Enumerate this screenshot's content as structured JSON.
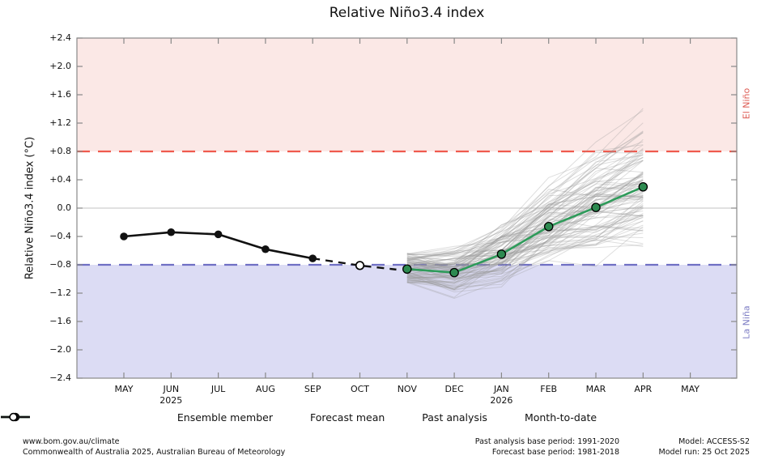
{
  "title": "Relative Niño3.4 index",
  "y_axis": {
    "label": "Relative Niño3.4 index (°C)",
    "tick_labels": [
      "+2.4",
      "+2.0",
      "+1.6",
      "+1.2",
      "+0.8",
      "+0.4",
      "0.0",
      "−0.4",
      "−0.8",
      "−1.2",
      "−1.6",
      "−2.0",
      "−2.4"
    ],
    "tick_values": [
      2.4,
      2.0,
      1.6,
      1.2,
      0.8,
      0.4,
      0.0,
      -0.4,
      -0.8,
      -1.2,
      -1.6,
      -2.0,
      -2.4
    ]
  },
  "x_axis": {
    "months": [
      {
        "label": "MAY",
        "year": ""
      },
      {
        "label": "JUN",
        "year": "2025"
      },
      {
        "label": "JUL",
        "year": ""
      },
      {
        "label": "AUG",
        "year": ""
      },
      {
        "label": "SEP",
        "year": ""
      },
      {
        "label": "OCT",
        "year": ""
      },
      {
        "label": "NOV",
        "year": ""
      },
      {
        "label": "DEC",
        "year": ""
      },
      {
        "label": "JAN",
        "year": "2026"
      },
      {
        "label": "FEB",
        "year": ""
      },
      {
        "label": "MAR",
        "year": ""
      },
      {
        "label": "APR",
        "year": ""
      },
      {
        "label": "MAY",
        "year": ""
      }
    ]
  },
  "bands": {
    "el_nino": {
      "label": "El Niño",
      "threshold": 0.8,
      "fill": "#fbe8e6",
      "line_color": "#ef5a4e",
      "text_color": "#dd5a52"
    },
    "la_nina": {
      "label": "La Niña",
      "threshold": -0.8,
      "fill": "#dcdcf4",
      "line_color": "#6f6fc4",
      "text_color": "#7d7dc4"
    }
  },
  "chart_data": {
    "type": "line",
    "title": "Relative Niño3.4 index",
    "ylabel": "Relative Niño3.4 index (°C)",
    "ylim": [
      -2.4,
      2.4
    ],
    "categories": [
      "MAY",
      "JUN",
      "JUL",
      "AUG",
      "SEP",
      "OCT",
      "NOV",
      "DEC",
      "JAN",
      "FEB",
      "MAR",
      "APR",
      "MAY"
    ],
    "series": {
      "past_analysis": {
        "name": "Past analysis",
        "month_indices": [
          0,
          1,
          2,
          3,
          4
        ],
        "values": [
          -0.4,
          -0.34,
          -0.37,
          -0.58,
          -0.71
        ]
      },
      "month_to_date": {
        "name": "Month-to-date",
        "month_index": 5,
        "value": -0.81
      },
      "forecast_mean": {
        "name": "Forecast mean",
        "month_indices": [
          6,
          7,
          8,
          9,
          10,
          11
        ],
        "values": [
          -0.86,
          -0.91,
          -0.65,
          -0.26,
          0.01,
          0.3
        ]
      },
      "ensemble": {
        "name": "Ensemble member",
        "count": 99,
        "month_indices": [
          6,
          7,
          8,
          9,
          10,
          11
        ],
        "envelope_min": [
          -1.05,
          -1.5,
          -1.45,
          -1.3,
          -1.1,
          -1.05
        ],
        "envelope_max": [
          -0.57,
          -0.5,
          -0.05,
          0.5,
          1.0,
          1.55
        ]
      }
    },
    "reference_lines": {
      "zero": 0.0,
      "el_nino": 0.8,
      "la_nina": -0.8
    }
  },
  "legend": {
    "items": [
      {
        "key": "ensemble",
        "label": "Ensemble member"
      },
      {
        "key": "forecast_mean",
        "label": "Forecast mean"
      },
      {
        "key": "past_analysis",
        "label": "Past analysis"
      },
      {
        "key": "month_to_date",
        "label": "Month-to-date"
      }
    ]
  },
  "footer": {
    "left_line1": "www.bom.gov.au/climate",
    "left_line2": "Commonwealth of Australia 2025, Australian Bureau of Meteorology",
    "mid_line1": "Past analysis base period: 1991-2020",
    "mid_line2": "Forecast base period: 1981-2018",
    "right_line1": "Model: ACCESS-S2",
    "right_line2": "Model run: 25 Oct 2025"
  },
  "colors": {
    "forecast_line": "#2e9b5a",
    "forecast_marker": "#2d8a50",
    "past_line": "#111111",
    "ensemble_line": "#999999",
    "zero_line": "#c3c3c3",
    "axis_border": "#888888"
  }
}
